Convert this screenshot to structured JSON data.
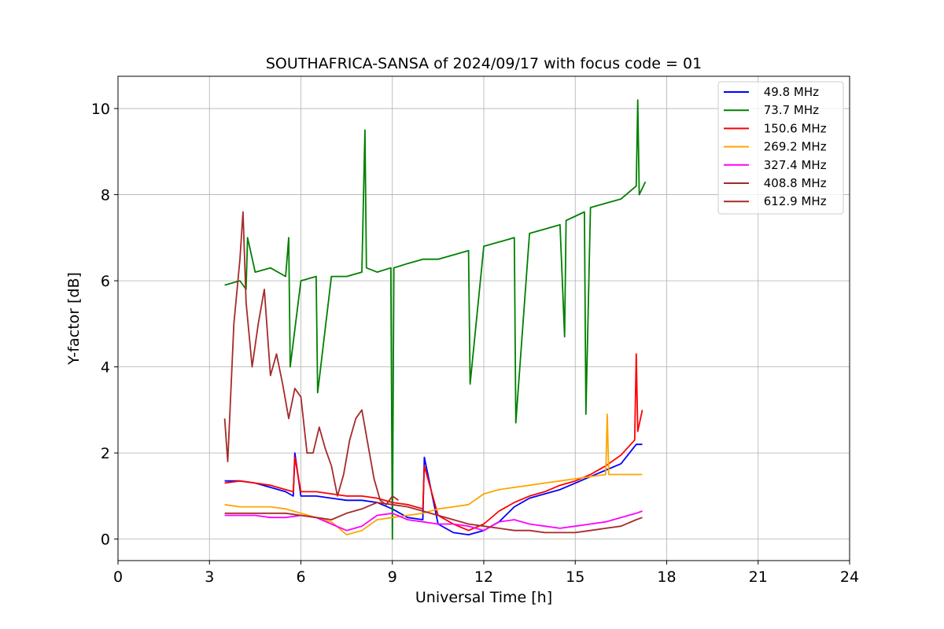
{
  "chart_data": {
    "type": "line",
    "title": "SOUTHAFRICA-SANSA of 2024/09/17 with focus code = 01",
    "xlabel": "Universal Time [h]",
    "ylabel": "Y-factor [dB]",
    "xlim": [
      0,
      24
    ],
    "ylim": [
      -0.5,
      10.75
    ],
    "xticks": [
      0,
      3,
      6,
      9,
      12,
      15,
      18,
      21,
      24
    ],
    "yticks": [
      0,
      2,
      4,
      6,
      8,
      10
    ],
    "grid": true,
    "legend_position": "top-right",
    "series": [
      {
        "name": " 49.8 MHz",
        "color": "#0000ff",
        "x": [
          3.5,
          4.0,
          4.5,
          5.0,
          5.5,
          5.75,
          5.8,
          6.0,
          6.5,
          7.0,
          7.5,
          8.0,
          8.5,
          9.0,
          9.5,
          10.0,
          10.05,
          10.5,
          11.0,
          11.5,
          12.0,
          12.5,
          13.0,
          13.5,
          14.0,
          14.5,
          15.0,
          15.5,
          16.0,
          16.5,
          17.0,
          17.2
        ],
        "y": [
          1.35,
          1.35,
          1.3,
          1.2,
          1.1,
          1.0,
          2.0,
          1.0,
          1.0,
          0.95,
          0.9,
          0.9,
          0.85,
          0.7,
          0.5,
          0.45,
          1.9,
          0.35,
          0.15,
          0.1,
          0.2,
          0.4,
          0.75,
          0.95,
          1.05,
          1.15,
          1.3,
          1.45,
          1.6,
          1.75,
          2.2,
          2.2
        ]
      },
      {
        "name": " 73.7 MHz",
        "color": "#008000",
        "x": [
          3.5,
          4.0,
          4.2,
          4.25,
          4.5,
          5.0,
          5.5,
          5.6,
          5.65,
          6.0,
          6.5,
          6.55,
          7.0,
          7.5,
          8.0,
          8.1,
          8.15,
          8.5,
          8.95,
          9.0,
          9.05,
          9.5,
          10.0,
          10.5,
          11.0,
          11.5,
          11.55,
          12.0,
          12.5,
          13.0,
          13.05,
          13.5,
          14.0,
          14.5,
          14.65,
          14.7,
          15.0,
          15.3,
          15.35,
          15.5,
          16.0,
          16.5,
          17.0,
          17.05,
          17.1,
          17.3
        ],
        "y": [
          5.9,
          6.0,
          5.8,
          7.0,
          6.2,
          6.3,
          6.1,
          7.0,
          4.0,
          6.0,
          6.1,
          3.4,
          6.1,
          6.1,
          6.2,
          9.5,
          6.3,
          6.2,
          6.3,
          0.0,
          6.3,
          6.4,
          6.5,
          6.5,
          6.6,
          6.7,
          3.6,
          6.8,
          6.9,
          7.0,
          2.7,
          7.1,
          7.2,
          7.3,
          4.7,
          7.4,
          7.5,
          7.6,
          2.9,
          7.7,
          7.8,
          7.9,
          8.2,
          10.2,
          8.0,
          8.3
        ]
      },
      {
        "name": " 150.6 MHz",
        "color": "#ff0000",
        "x": [
          3.5,
          4.0,
          4.5,
          5.0,
          5.5,
          5.75,
          5.8,
          6.0,
          6.5,
          7.0,
          7.5,
          8.0,
          8.5,
          9.0,
          9.5,
          10.0,
          10.05,
          10.5,
          11.0,
          11.5,
          12.0,
          12.5,
          13.0,
          13.5,
          14.0,
          14.5,
          15.0,
          15.5,
          16.0,
          16.5,
          16.95,
          17.0,
          17.05,
          17.2
        ],
        "y": [
          1.3,
          1.35,
          1.3,
          1.25,
          1.15,
          1.1,
          1.9,
          1.1,
          1.1,
          1.05,
          1.0,
          1.0,
          0.95,
          0.85,
          0.8,
          0.7,
          1.7,
          0.55,
          0.35,
          0.2,
          0.35,
          0.65,
          0.85,
          1.0,
          1.1,
          1.25,
          1.35,
          1.5,
          1.7,
          1.95,
          2.3,
          4.3,
          2.5,
          3.0
        ]
      },
      {
        "name": " 269.2 MHz",
        "color": "#ffa500",
        "x": [
          3.5,
          4.0,
          4.5,
          5.0,
          5.5,
          6.0,
          6.5,
          7.0,
          7.5,
          8.0,
          8.5,
          9.0,
          9.5,
          10.0,
          10.5,
          11.0,
          11.5,
          12.0,
          12.5,
          13.0,
          13.5,
          14.0,
          14.5,
          15.0,
          15.5,
          16.0,
          16.05,
          16.1,
          16.5,
          17.0,
          17.2
        ],
        "y": [
          0.8,
          0.75,
          0.75,
          0.75,
          0.7,
          0.6,
          0.5,
          0.4,
          0.1,
          0.2,
          0.45,
          0.5,
          0.55,
          0.6,
          0.7,
          0.75,
          0.8,
          1.05,
          1.15,
          1.2,
          1.25,
          1.3,
          1.35,
          1.4,
          1.45,
          1.5,
          2.9,
          1.5,
          1.5,
          1.5,
          1.5
        ]
      },
      {
        "name": " 327.4 MHz",
        "color": "#ff00ff",
        "x": [
          3.5,
          4.0,
          4.5,
          5.0,
          5.5,
          6.0,
          6.5,
          7.0,
          7.5,
          8.0,
          8.5,
          9.0,
          9.5,
          10.0,
          10.5,
          11.0,
          11.5,
          12.0,
          12.5,
          13.0,
          13.5,
          14.0,
          14.5,
          15.0,
          15.5,
          16.0,
          16.5,
          17.0,
          17.2
        ],
        "y": [
          0.55,
          0.55,
          0.55,
          0.5,
          0.5,
          0.55,
          0.5,
          0.35,
          0.2,
          0.3,
          0.55,
          0.6,
          0.45,
          0.4,
          0.35,
          0.35,
          0.3,
          0.2,
          0.4,
          0.45,
          0.35,
          0.3,
          0.25,
          0.3,
          0.35,
          0.4,
          0.5,
          0.6,
          0.65
        ]
      },
      {
        "name": " 408.8 MHz",
        "color": "#a52a2a",
        "x": [
          3.5,
          4.0,
          4.5,
          5.0,
          5.5,
          6.0,
          6.5,
          7.0,
          7.5,
          8.0,
          8.5,
          9.0,
          9.5,
          10.0,
          10.5,
          11.0,
          11.5,
          12.0,
          12.5,
          13.0,
          13.5,
          14.0,
          14.5,
          15.0,
          15.5,
          16.0,
          16.5,
          17.0,
          17.2
        ],
        "y": [
          0.6,
          0.6,
          0.6,
          0.6,
          0.6,
          0.55,
          0.5,
          0.45,
          0.6,
          0.7,
          0.85,
          0.8,
          0.75,
          0.65,
          0.55,
          0.45,
          0.35,
          0.3,
          0.25,
          0.2,
          0.2,
          0.15,
          0.15,
          0.15,
          0.2,
          0.25,
          0.3,
          0.45,
          0.5
        ]
      },
      {
        "name": " 612.9 MHz",
        "color": "#a52a2a",
        "x": [
          3.5,
          3.6,
          3.8,
          4.0,
          4.1,
          4.2,
          4.4,
          4.6,
          4.8,
          5.0,
          5.2,
          5.4,
          5.6,
          5.8,
          6.0,
          6.2,
          6.4,
          6.6,
          6.8,
          7.0,
          7.2,
          7.4,
          7.6,
          7.8,
          8.0,
          8.2,
          8.4,
          8.6,
          8.8,
          9.0,
          9.2
        ],
        "y": [
          2.8,
          1.8,
          5.0,
          6.5,
          7.6,
          5.5,
          4.0,
          5.0,
          5.8,
          3.8,
          4.3,
          3.6,
          2.8,
          3.5,
          3.3,
          2.0,
          2.0,
          2.6,
          2.1,
          1.7,
          1.0,
          1.5,
          2.3,
          2.8,
          3.0,
          2.2,
          1.4,
          0.9,
          0.8,
          1.0,
          0.9
        ]
      }
    ]
  }
}
